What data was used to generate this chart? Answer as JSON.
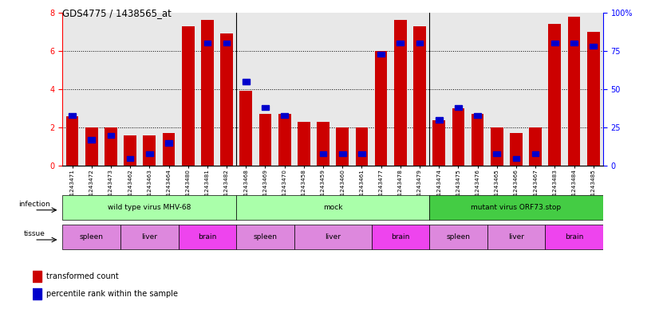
{
  "title": "GDS4775 / 1438565_at",
  "samples": [
    "GSM1243471",
    "GSM1243472",
    "GSM1243473",
    "GSM1243462",
    "GSM1243463",
    "GSM1243464",
    "GSM1243480",
    "GSM1243481",
    "GSM1243482",
    "GSM1243468",
    "GSM1243469",
    "GSM1243470",
    "GSM1243458",
    "GSM1243459",
    "GSM1243460",
    "GSM1243461",
    "GSM1243477",
    "GSM1243478",
    "GSM1243479",
    "GSM1243474",
    "GSM1243475",
    "GSM1243476",
    "GSM1243465",
    "GSM1243466",
    "GSM1243467",
    "GSM1243483",
    "GSM1243484",
    "GSM1243485"
  ],
  "red_values": [
    2.6,
    2.0,
    2.0,
    1.6,
    1.6,
    1.7,
    7.3,
    7.6,
    6.9,
    3.9,
    2.7,
    2.7,
    2.3,
    2.3,
    2.0,
    2.0,
    6.0,
    7.6,
    7.3,
    2.4,
    3.0,
    2.7,
    2.0,
    1.7,
    2.0,
    7.4,
    7.8,
    7.0
  ],
  "blue_values_pct": [
    33,
    17,
    20,
    5,
    8,
    15,
    0,
    80,
    80,
    55,
    38,
    33,
    0,
    8,
    8,
    8,
    73,
    80,
    80,
    30,
    38,
    33,
    8,
    5,
    8,
    80,
    80,
    78
  ],
  "ylim": [
    0,
    8
  ],
  "yticks": [
    0,
    2,
    4,
    6,
    8
  ],
  "y2lim": [
    0,
    100
  ],
  "y2ticks": [
    0,
    25,
    50,
    75,
    100
  ],
  "bar_color_red": "#cc0000",
  "bar_color_blue": "#0000cc",
  "background_color": "#ffffff",
  "plot_bg_color": "#e8e8e8",
  "infection_groups": [
    {
      "label": "wild type virus MHV-68",
      "start": 0,
      "end": 9,
      "color": "#aaffaa"
    },
    {
      "label": "mock",
      "start": 9,
      "end": 19,
      "color": "#aaffaa"
    },
    {
      "label": "mutant virus ORF73.stop",
      "start": 19,
      "end": 28,
      "color": "#44cc44"
    }
  ],
  "tissue_groups": [
    {
      "label": "spleen",
      "start": 0,
      "end": 3,
      "color": "#dd88dd"
    },
    {
      "label": "liver",
      "start": 3,
      "end": 6,
      "color": "#dd88dd"
    },
    {
      "label": "brain",
      "start": 6,
      "end": 9,
      "color": "#ee44ee"
    },
    {
      "label": "spleen",
      "start": 9,
      "end": 12,
      "color": "#dd88dd"
    },
    {
      "label": "liver",
      "start": 12,
      "end": 16,
      "color": "#dd88dd"
    },
    {
      "label": "brain",
      "start": 16,
      "end": 19,
      "color": "#ee44ee"
    },
    {
      "label": "spleen",
      "start": 19,
      "end": 22,
      "color": "#dd88dd"
    },
    {
      "label": "liver",
      "start": 22,
      "end": 25,
      "color": "#dd88dd"
    },
    {
      "label": "brain",
      "start": 25,
      "end": 28,
      "color": "#ee44ee"
    }
  ],
  "group_separators": [
    9,
    19
  ],
  "bar_width": 0.65
}
